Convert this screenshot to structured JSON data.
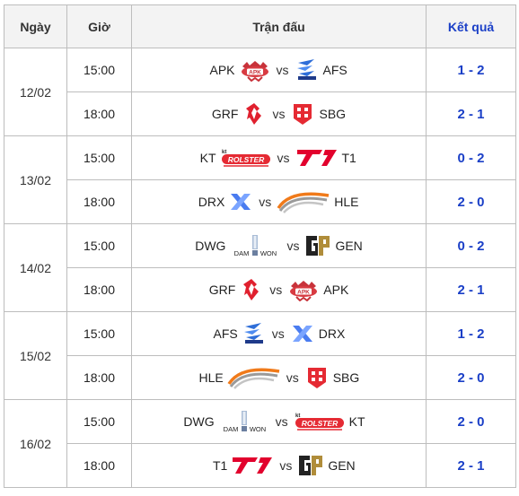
{
  "headers": {
    "date": "Ngày",
    "time": "Giờ",
    "match": "Trận đấu",
    "result": "Kết quả"
  },
  "vs": "vs",
  "days": [
    {
      "date": "12/02",
      "matches": [
        {
          "time": "15:00",
          "home": "APK",
          "home_logo": "apk-logo-icon",
          "away": "AFS",
          "away_logo": "afs-logo-icon",
          "result": "1 - 2"
        },
        {
          "time": "18:00",
          "home": "GRF",
          "home_logo": "grf-logo-icon",
          "away": "SBG",
          "away_logo": "sbg-logo-icon",
          "result": "2 - 1"
        }
      ]
    },
    {
      "date": "13/02",
      "matches": [
        {
          "time": "15:00",
          "home": "KT",
          "home_logo": "kt-logo-icon",
          "away": "T1",
          "away_logo": "t1-logo-icon",
          "result": "0 - 2"
        },
        {
          "time": "18:00",
          "home": "DRX",
          "home_logo": "drx-logo-icon",
          "away": "HLE",
          "away_logo": "hle-logo-icon",
          "result": "2 - 0"
        }
      ]
    },
    {
      "date": "14/02",
      "matches": [
        {
          "time": "15:00",
          "home": "DWG",
          "home_logo": "dwg-logo-icon",
          "away": "GEN",
          "away_logo": "gen-logo-icon",
          "result": "0 - 2"
        },
        {
          "time": "18:00",
          "home": "GRF",
          "home_logo": "grf-logo-icon",
          "away": "APK",
          "away_logo": "apk-logo-icon",
          "result": "2 - 1"
        }
      ]
    },
    {
      "date": "15/02",
      "matches": [
        {
          "time": "15:00",
          "home": "AFS",
          "home_logo": "afs-logo-icon",
          "away": "DRX",
          "away_logo": "drx-logo-icon",
          "result": "1 - 2"
        },
        {
          "time": "18:00",
          "home": "HLE",
          "home_logo": "hle-logo-icon",
          "away": "SBG",
          "away_logo": "sbg-logo-icon",
          "result": "2 - 0"
        }
      ]
    },
    {
      "date": "16/02",
      "matches": [
        {
          "time": "15:00",
          "home": "DWG",
          "home_logo": "dwg-logo-icon",
          "away": "KT",
          "away_logo": "kt-logo-icon",
          "result": "2 - 0"
        },
        {
          "time": "18:00",
          "home": "T1",
          "home_logo": "t1-logo-icon",
          "away": "GEN",
          "away_logo": "gen-logo-icon",
          "result": "2 - 1"
        }
      ]
    }
  ],
  "logo_text": {
    "kt_small": "kt",
    "kt_main": "ROLSTER",
    "dwg_left": "DAM",
    "dwg_right": "WON",
    "apk_badge": "APK"
  },
  "colors": {
    "result": "#1a3fc7",
    "border": "#bdbdbd",
    "header_bg": "#f3f3f3"
  }
}
